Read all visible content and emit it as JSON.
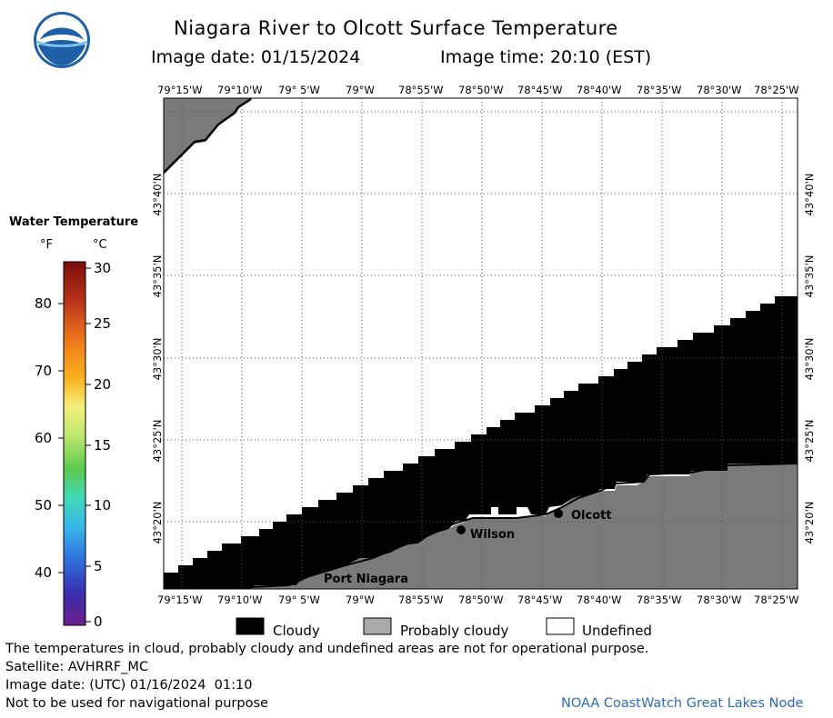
{
  "header": {
    "title": "Niagara River to Olcott Surface Temperature",
    "image_date_label": "Image date: 01/15/2024",
    "image_time_label": "Image time: 20:10 (EST)"
  },
  "logo": {
    "text": "NOAA"
  },
  "map": {
    "lon_labels": [
      "79°15'W",
      "79°10'W",
      "79° 5'W",
      "79°W",
      "78°55'W",
      "78°50'W",
      "78°45'W",
      "78°40'W",
      "78°35'W",
      "78°30'W",
      "78°25'W"
    ],
    "lat_labels": [
      "43°40'N",
      "43°35'N",
      "43°30'N",
      "43°25'N",
      "43°20'N"
    ],
    "places": {
      "wilson": "Wilson",
      "olcott": "Olcott",
      "port_niagara": "Port Niagara"
    },
    "colors": {
      "cloudy": "#000000",
      "probably_cloudy": "#7a7a7a",
      "undefined": "#ffffff",
      "grid": "#555555"
    }
  },
  "colorbar": {
    "title": "Water Temperature",
    "unit_f": "°F",
    "unit_c": "°C",
    "f_labels": [
      "80",
      "70",
      "60",
      "50",
      "40"
    ],
    "c_labels": [
      "30",
      "25",
      "20",
      "15",
      "10",
      "5",
      "0"
    ],
    "gradient": [
      "#7a0c0c",
      "#c0391b",
      "#f07a1a",
      "#f7b21e",
      "#f4f07a",
      "#bde66e",
      "#5cc94e",
      "#3fd9b8",
      "#38b6e8",
      "#2f6fdc",
      "#3a2fb0",
      "#6a1f8a"
    ]
  },
  "key": {
    "cloudy": "Cloudy",
    "probably_cloudy": "Probably cloudy",
    "undefined": "Undefined"
  },
  "footer": {
    "line1": "The temperatures in cloud, probably cloudy and undefined areas are not for operational purpose.",
    "line2": "Satellite: AVHRRF_MC",
    "line3": "Image date: (UTC) 01/16/2024  01:10",
    "line4": "Not to be used for navigational purpose",
    "credit": "NOAA CoastWatch Great Lakes Node"
  }
}
